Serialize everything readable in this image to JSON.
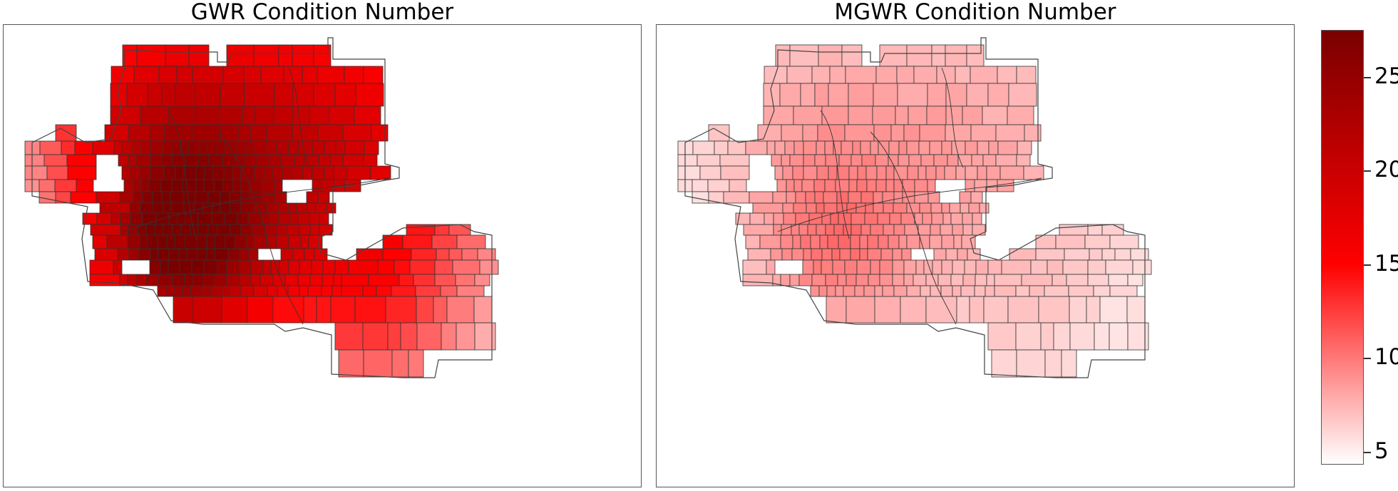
{
  "panels": [
    {
      "title": "GWR Condition Number",
      "value_scale": 1.0
    },
    {
      "title": "MGWR Condition Number",
      "value_scale": 0.22
    }
  ],
  "colorbar": {
    "min": 4.3,
    "max": 27.5,
    "ticks": [
      {
        "value": 5,
        "label": "5"
      },
      {
        "value": 10,
        "label": "10"
      },
      {
        "value": 15,
        "label": "15"
      },
      {
        "value": 20,
        "label": "20"
      },
      {
        "value": 25,
        "label": "25"
      }
    ],
    "colors": [
      "#ffffff",
      "#ff0000",
      "#7a0000"
    ]
  }
}
